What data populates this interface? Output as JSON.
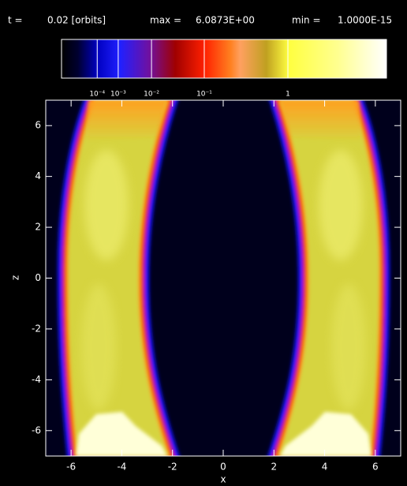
{
  "chart_data": {
    "type": "heatmap",
    "header": {
      "t_label": "t =",
      "t_value": "0.02 [orbits]",
      "max_label": "max =",
      "max": {
        "value": 6.0873,
        "label": "6.0873E+00"
      },
      "min_label": "min =",
      "min": {
        "value": 1e-15,
        "label": "1.0000E-15"
      }
    },
    "colorbar": {
      "scale": "power",
      "exponent": 0.2,
      "ticks": [
        {
          "value": 0.0001,
          "label": "10⁻⁴"
        },
        {
          "value": 0.001,
          "label": "10⁻³"
        },
        {
          "value": 0.01,
          "label": "10⁻²"
        },
        {
          "value": 0.1,
          "label": "10⁻¹"
        },
        1
      ]
    },
    "xlabel": "x",
    "ylabel": "z",
    "xlim": [
      -7,
      7
    ],
    "ylim": [
      -7,
      7
    ],
    "xticks": [
      -6,
      -4,
      -2,
      0,
      2,
      4,
      6
    ],
    "yticks": [
      -6,
      -4,
      -2,
      0,
      2,
      4,
      6
    ]
  }
}
